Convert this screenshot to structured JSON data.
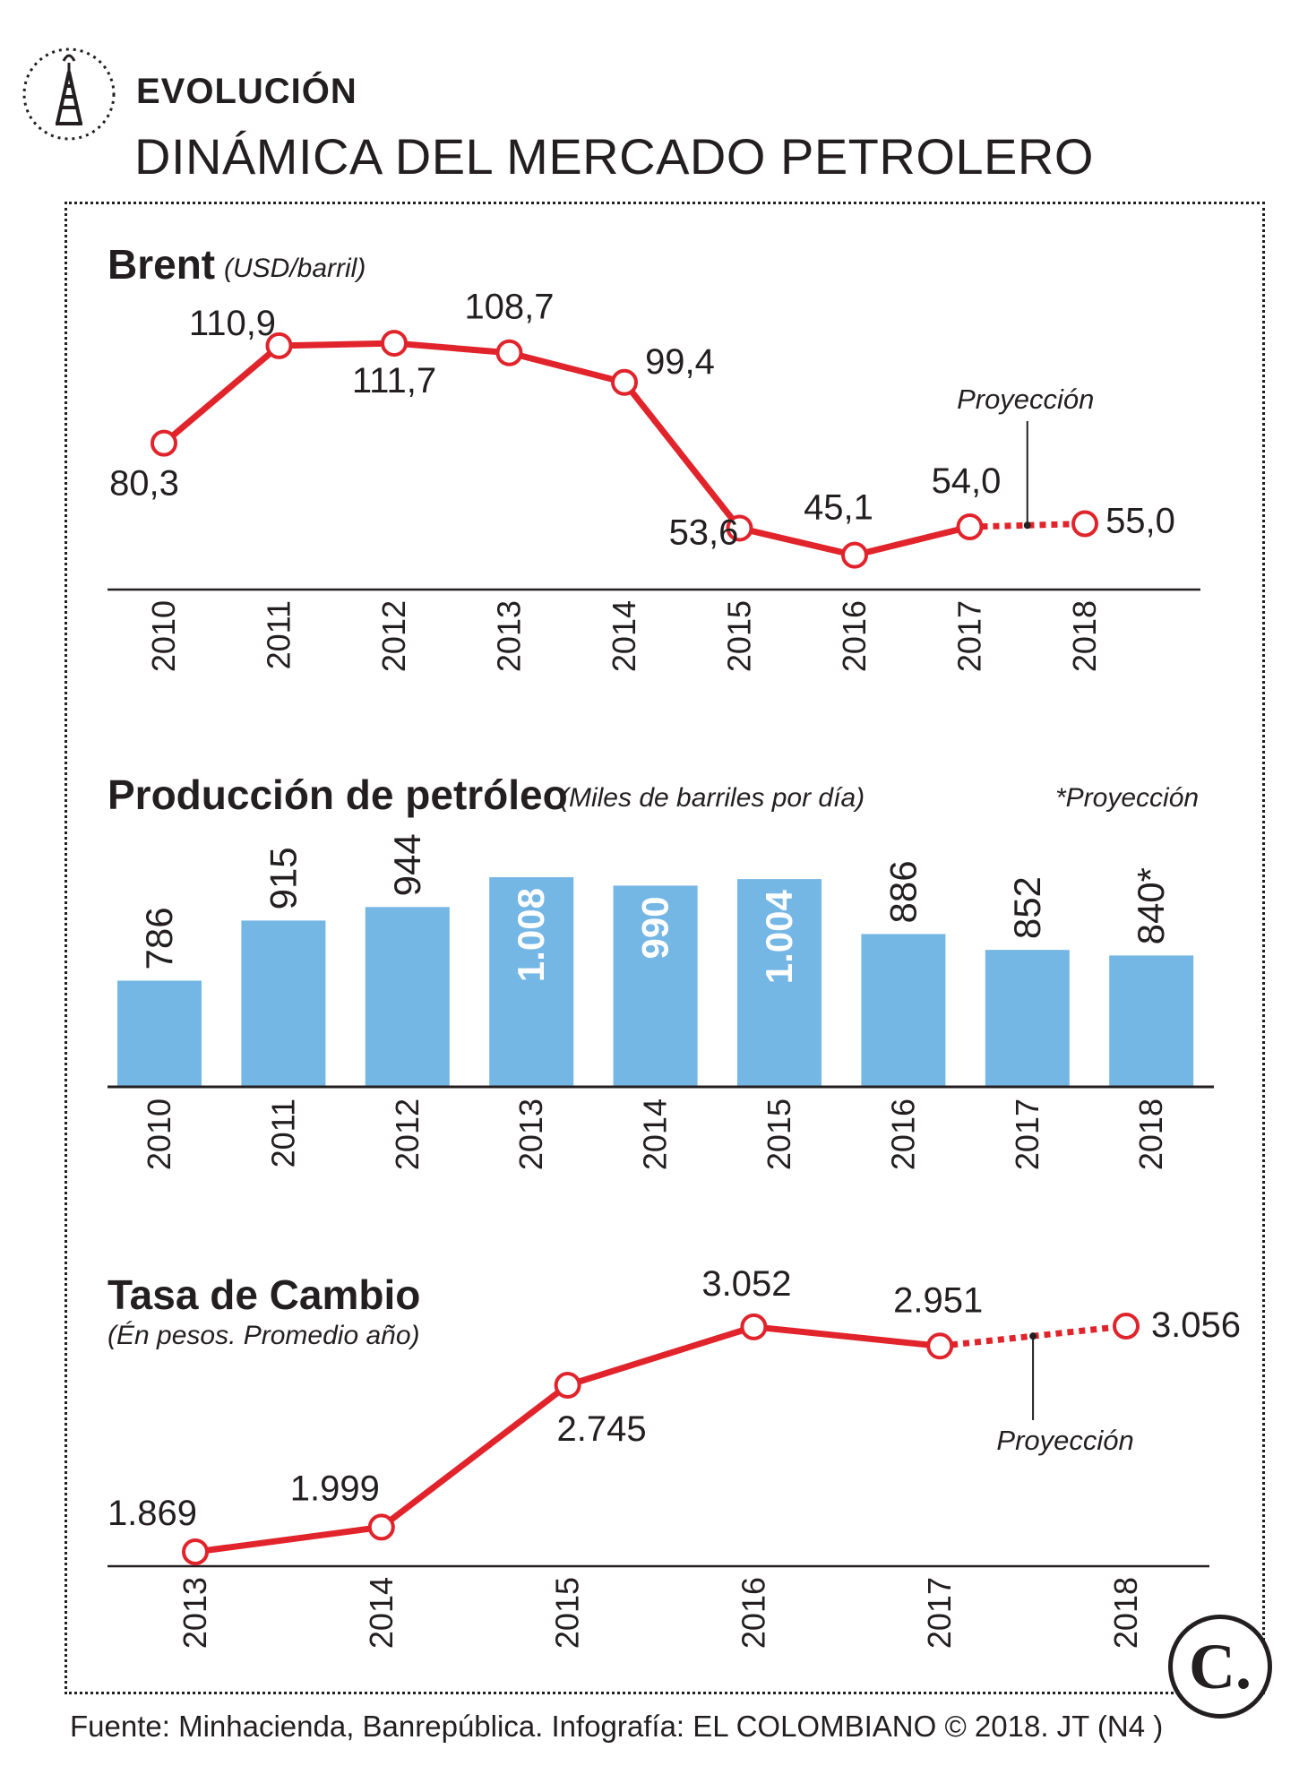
{
  "header": {
    "kicker": "EVOLUCIÓN",
    "title": "DINÁMICA DEL MERCADO PETROLERO"
  },
  "colors": {
    "line": "#e1242b",
    "bar": "#74b6e4",
    "text": "#231f20"
  },
  "sections": {
    "brent": {
      "title": "Brent",
      "subtitle": "(USD/barril)",
      "projection_label": "Proyección"
    },
    "production": {
      "title": "Producción de petróleo",
      "subtitle": "(Miles de barriles por día)",
      "projection_note": "*Proyección"
    },
    "fx": {
      "title": "Tasa de Cambio",
      "subtitle": "(Én pesos. Promedio año)",
      "projection_label": "Proyección"
    }
  },
  "chart_data": [
    {
      "type": "line",
      "title": "Brent",
      "ylabel": "USD/barril",
      "x": [
        "2010",
        "2011",
        "2012",
        "2013",
        "2014",
        "2015",
        "2016",
        "2017",
        "2018"
      ],
      "values": [
        80.3,
        110.9,
        111.7,
        108.7,
        99.4,
        53.6,
        45.1,
        54.0,
        55.0
      ],
      "labels": [
        "80,3",
        "110,9",
        "111,7",
        "108,7",
        "99,4",
        "53,6",
        "45,1",
        "54,0",
        "55,0"
      ],
      "projected_from_index": 7,
      "ylim": [
        45,
        112
      ]
    },
    {
      "type": "bar",
      "title": "Producción de petróleo",
      "ylabel": "Miles de barriles por día",
      "categories": [
        "2010",
        "2011",
        "2012",
        "2013",
        "2014",
        "2015",
        "2016",
        "2017",
        "2018"
      ],
      "values": [
        786,
        915,
        944,
        1008,
        990,
        1004,
        886,
        852,
        840
      ],
      "labels": [
        "786",
        "915",
        "944",
        "1.008",
        "990",
        "1.004",
        "886",
        "852",
        "840*"
      ],
      "inside_label_indices": [
        3,
        4,
        5
      ],
      "ylim": [
        560,
        1010
      ]
    },
    {
      "type": "line",
      "title": "Tasa de Cambio",
      "ylabel": "En pesos. Promedio año",
      "x": [
        "2013",
        "2014",
        "2015",
        "2016",
        "2017",
        "2018"
      ],
      "values": [
        1869,
        1999,
        2745,
        3052,
        2951,
        3056
      ],
      "labels": [
        "1.869",
        "1.999",
        "2.745",
        "3.052",
        "2.951",
        "3.056"
      ],
      "projected_from_index": 4,
      "ylim": [
        1869,
        3056
      ]
    }
  ],
  "footer": {
    "source": "Fuente: Minhacienda, Banrepública. Infografía: EL COLOMBIANO © 2018. JT (N4 )",
    "logo_text": "C."
  }
}
